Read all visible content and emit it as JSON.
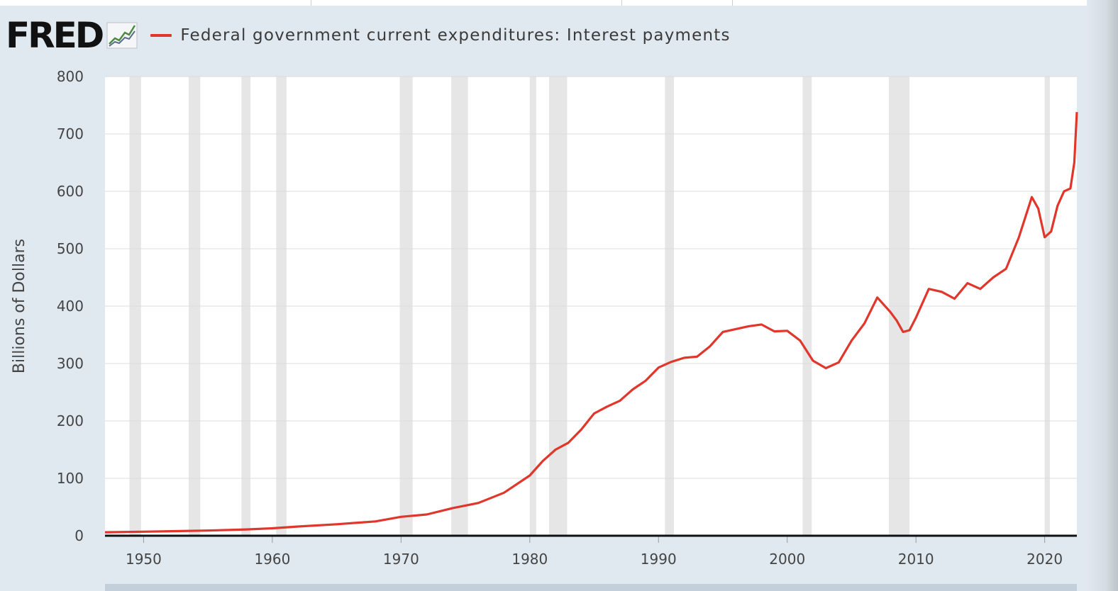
{
  "header": {
    "logo_text": "FRED",
    "logo_icon": "chart-line-icon",
    "series_label": "Federal government current expenditures: Interest payments",
    "series_color": "#e0362b"
  },
  "chart_data": {
    "type": "line",
    "title": "",
    "xlabel": "",
    "ylabel": "Billions of Dollars",
    "xlim": [
      1947,
      2022.5
    ],
    "ylim": [
      0,
      800
    ],
    "yticks": [
      0,
      100,
      200,
      300,
      400,
      500,
      600,
      700,
      800
    ],
    "xticks": [
      1950,
      1960,
      1970,
      1980,
      1990,
      2000,
      2010,
      2020
    ],
    "grid": true,
    "legend": "top-left",
    "recessions": [
      [
        1948.9,
        1949.8
      ],
      [
        1953.5,
        1954.4
      ],
      [
        1957.6,
        1958.3
      ],
      [
        1960.3,
        1961.1
      ],
      [
        1969.9,
        1970.9
      ],
      [
        1973.9,
        1975.2
      ],
      [
        1980.0,
        1980.5
      ],
      [
        1981.5,
        1982.9
      ],
      [
        1990.5,
        1991.2
      ],
      [
        2001.2,
        2001.9
      ],
      [
        2007.9,
        2009.5
      ],
      [
        2020.0,
        2020.4
      ]
    ],
    "series": [
      {
        "color": "#e0362b",
        "x": [
          1947,
          1950,
          1955,
          1958,
          1960,
          1962,
          1965,
          1968,
          1970,
          1972,
          1974,
          1976,
          1978,
          1980,
          1981,
          1982,
          1983,
          1984,
          1985,
          1986,
          1987,
          1988,
          1989,
          1990,
          1991,
          1992,
          1993,
          1994,
          1995,
          1996,
          1997,
          1998,
          1999,
          2000,
          2001,
          2002,
          2003,
          2004,
          2005,
          2006,
          2007,
          2008,
          2008.5,
          2009,
          2009.5,
          2010,
          2011,
          2012,
          2013,
          2014,
          2015,
          2016,
          2017,
          2018,
          2019,
          2019.5,
          2020,
          2020.5,
          2021,
          2021.5,
          2022,
          2022.3,
          2022.5
        ],
        "y": [
          6,
          7,
          9,
          11,
          13,
          16,
          20,
          25,
          33,
          37,
          48,
          57,
          75,
          105,
          130,
          150,
          162,
          185,
          213,
          225,
          235,
          255,
          270,
          293,
          303,
          310,
          312,
          330,
          355,
          360,
          365,
          368,
          356,
          357,
          340,
          305,
          292,
          302,
          340,
          370,
          415,
          390,
          375,
          355,
          358,
          380,
          430,
          425,
          413,
          440,
          430,
          450,
          465,
          520,
          590,
          570,
          520,
          530,
          575,
          600,
          605,
          650,
          738
        ]
      }
    ]
  }
}
